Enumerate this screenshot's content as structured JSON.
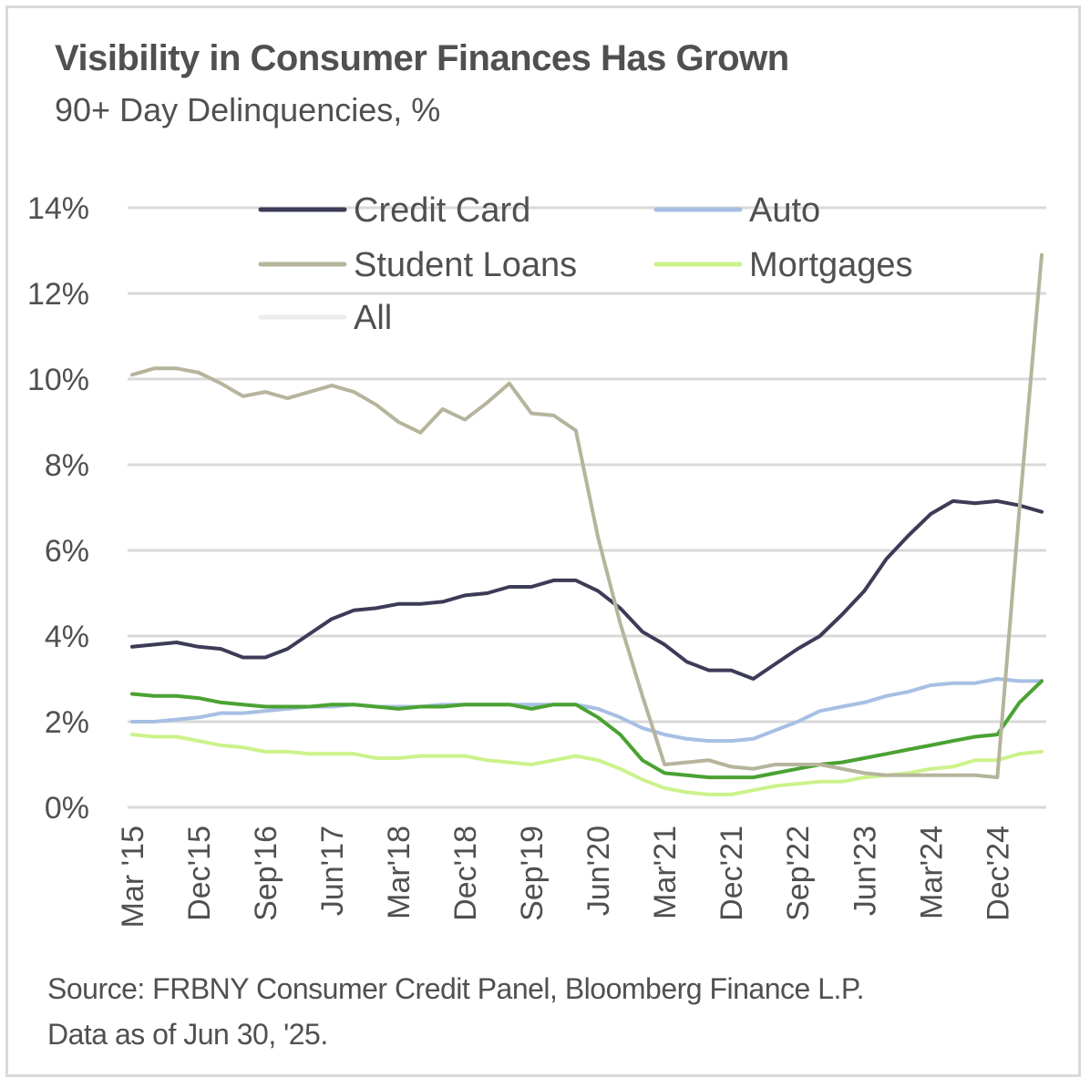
{
  "chart_data": {
    "type": "line",
    "title": "Visibility in Consumer Finances Has Grown",
    "subtitle": "90+ Day Delinquencies, %",
    "ylim": [
      0,
      14
    ],
    "yticks": [
      0,
      2,
      4,
      6,
      8,
      10,
      12,
      14
    ],
    "ytick_labels": [
      "0%",
      "2%",
      "4%",
      "6%",
      "8%",
      "10%",
      "12%",
      "14%"
    ],
    "xtick_labels": [
      "Mar '15",
      "Dec'15",
      "Sep'16",
      "Jun'17",
      "Mar'18",
      "Dec'18",
      "Sep'19",
      "Jun'20",
      "Mar'21",
      "Dec'21",
      "Sep'22",
      "Jun'23",
      "Mar'24",
      "Dec'24"
    ],
    "xtick_indices": [
      0,
      3,
      6,
      9,
      12,
      15,
      18,
      21,
      24,
      27,
      30,
      33,
      36,
      39
    ],
    "n_points": 42,
    "grid": true,
    "legend": "top",
    "series": [
      {
        "name": "Credit Card",
        "color": "#3c3c58",
        "values": [
          3.75,
          3.8,
          3.85,
          3.75,
          3.7,
          3.5,
          3.5,
          3.7,
          4.05,
          4.4,
          4.6,
          4.65,
          4.75,
          4.75,
          4.8,
          4.95,
          5.0,
          5.15,
          5.15,
          5.3,
          5.3,
          5.05,
          4.65,
          4.1,
          3.8,
          3.4,
          3.2,
          3.2,
          3.0,
          3.35,
          3.7,
          4.0,
          4.5,
          5.05,
          5.8,
          6.35,
          6.85,
          7.15,
          7.1,
          7.15,
          7.05,
          6.9
        ]
      },
      {
        "name": "Auto",
        "color": "#a7bfe3",
        "values": [
          2.0,
          2.0,
          2.05,
          2.1,
          2.2,
          2.2,
          2.25,
          2.3,
          2.35,
          2.35,
          2.4,
          2.35,
          2.35,
          2.35,
          2.4,
          2.4,
          2.4,
          2.4,
          2.4,
          2.4,
          2.4,
          2.3,
          2.1,
          1.85,
          1.7,
          1.6,
          1.55,
          1.55,
          1.6,
          1.8,
          2.0,
          2.25,
          2.35,
          2.45,
          2.6,
          2.7,
          2.85,
          2.9,
          2.9,
          3.0,
          2.95,
          2.95
        ]
      },
      {
        "name": "Student Loans",
        "color": "#b6b49c",
        "values": [
          10.1,
          10.25,
          10.25,
          10.15,
          9.9,
          9.6,
          9.7,
          9.55,
          9.7,
          9.85,
          9.7,
          9.4,
          9.0,
          8.75,
          9.3,
          9.05,
          9.45,
          9.9,
          9.2,
          9.15,
          8.8,
          6.3,
          4.3,
          2.6,
          1.0,
          1.05,
          1.1,
          0.95,
          0.9,
          1.0,
          1.0,
          1.0,
          0.9,
          0.8,
          0.75,
          0.75,
          0.75,
          0.75,
          0.75,
          0.7,
          7.0,
          12.9
        ]
      },
      {
        "name": "Mortgages",
        "color": "#ccf28a",
        "values": [
          1.7,
          1.65,
          1.65,
          1.55,
          1.45,
          1.4,
          1.3,
          1.3,
          1.25,
          1.25,
          1.25,
          1.15,
          1.15,
          1.2,
          1.2,
          1.2,
          1.1,
          1.05,
          1.0,
          1.1,
          1.2,
          1.1,
          0.9,
          0.65,
          0.45,
          0.35,
          0.3,
          0.3,
          0.4,
          0.5,
          0.55,
          0.6,
          0.6,
          0.7,
          0.75,
          0.8,
          0.9,
          0.95,
          1.1,
          1.1,
          1.25,
          1.3
        ]
      },
      {
        "name": "All",
        "color": "#ececec",
        "values": [
          2.65,
          2.6,
          2.6,
          2.55,
          2.45,
          2.4,
          2.35,
          2.35,
          2.35,
          2.4,
          2.4,
          2.35,
          2.3,
          2.35,
          2.35,
          2.4,
          2.4,
          2.4,
          2.3,
          2.4,
          2.4,
          2.1,
          1.7,
          1.1,
          0.8,
          0.75,
          0.7,
          0.7,
          0.7,
          0.8,
          0.9,
          1.0,
          1.05,
          1.15,
          1.25,
          1.35,
          1.45,
          1.55,
          1.65,
          1.7,
          2.45,
          2.95
        ]
      },
      {
        "name": "",
        "color": "#4aa232",
        "values": [
          2.65,
          2.6,
          2.6,
          2.55,
          2.45,
          2.4,
          2.35,
          2.35,
          2.35,
          2.4,
          2.4,
          2.35,
          2.3,
          2.35,
          2.35,
          2.4,
          2.4,
          2.4,
          2.3,
          2.4,
          2.4,
          2.1,
          1.7,
          1.1,
          0.8,
          0.75,
          0.7,
          0.7,
          0.7,
          0.8,
          0.9,
          1.0,
          1.05,
          1.15,
          1.25,
          1.35,
          1.45,
          1.55,
          1.65,
          1.7,
          2.45,
          2.95
        ]
      }
    ]
  },
  "source": {
    "line1": "Source: FRBNY Consumer Credit Panel, Bloomberg Finance L.P.",
    "line2": "Data as of Jun  30, '25."
  }
}
